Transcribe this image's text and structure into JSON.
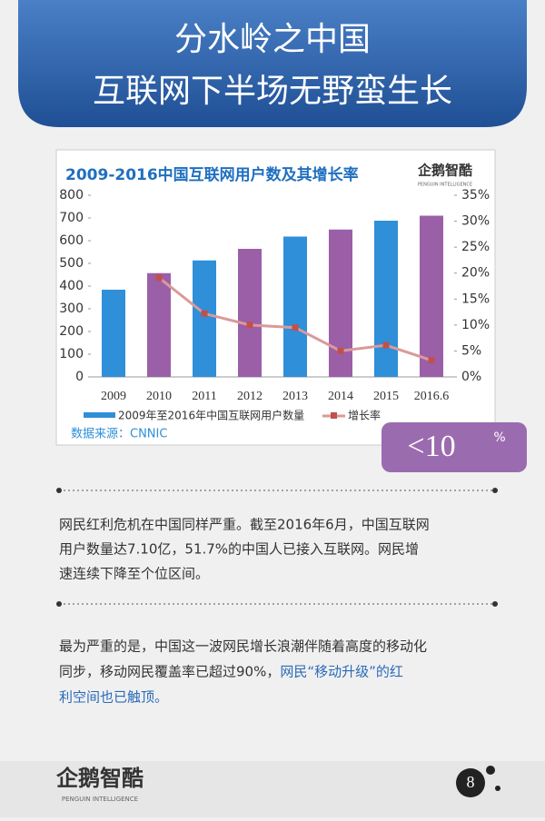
{
  "header": {
    "title_lines": [
      "分水岭之中国",
      "互联网下半场无野蛮生长"
    ]
  },
  "chart_data": {
    "type": "bar-line",
    "title": "2009-2016中国互联网用户数及其增长率",
    "logo": "企鹅智酷",
    "logo_sub": "PENGUIN INTELLIGENCE",
    "categories": [
      "2009",
      "2010",
      "2011",
      "2012",
      "2013",
      "2014",
      "2015",
      "2016.6"
    ],
    "series": [
      {
        "name": "2009年至2016年中国互联网用户数量",
        "color": "#2f8fd8",
        "colors": [
          "#2f8fd8",
          "#9b5fa8",
          "#2f8fd8",
          "#9b5fa8",
          "#2f8fd8",
          "#9b5fa8",
          "#2f8fd8",
          "#9b5fa8"
        ],
        "values": [
          384,
          457,
          513,
          564,
          618,
          649,
          688,
          710
        ]
      },
      {
        "name": "增长率",
        "type": "line",
        "axis": "y2",
        "color": "#d99a9a",
        "marker_color": "#c0504d",
        "values": [
          null,
          19.1,
          12.2,
          10.0,
          9.5,
          5.0,
          6.1,
          3.2
        ]
      }
    ],
    "ylim": [
      0,
      800
    ],
    "yticks": [
      0,
      100,
      200,
      300,
      400,
      500,
      600,
      700,
      800
    ],
    "y2lim": [
      0,
      35
    ],
    "y2ticks": [
      {
        "value": 0,
        "label": "0%"
      },
      {
        "value": 5,
        "label": "5%"
      },
      {
        "value": 10,
        "label": "10%"
      },
      {
        "value": 15,
        "label": "15%"
      },
      {
        "value": 20,
        "label": "20%"
      },
      {
        "value": 25,
        "label": "25%"
      },
      {
        "value": 30,
        "label": "30%"
      },
      {
        "value": 35,
        "label": "35%"
      }
    ],
    "source": "数据来源：CNNIC",
    "badge": "<10",
    "badge_unit": "%"
  },
  "paragraphs": [
    {
      "lines": [
        "网民红利危机在中国同样严重。截至2016年6月，中国互联网",
        "用户数量达7.10亿，51.7%的中国人已接入互联网。网民增",
        "速连续下降至个位区间。"
      ]
    },
    {
      "lines": [
        "最为严重的是，中国这一波网民增长浪潮伴随着高度的移动化",
        "同步，移动网民覆盖率已超过90%，"
      ],
      "highlight_lines": [
        "网民“移动升级”的红",
        "利空间也已触顶。"
      ]
    }
  ],
  "footer": {
    "logo": "企鹅智酷",
    "logo_sub": "PENGUIN INTELLIGENCE",
    "page": "8"
  }
}
